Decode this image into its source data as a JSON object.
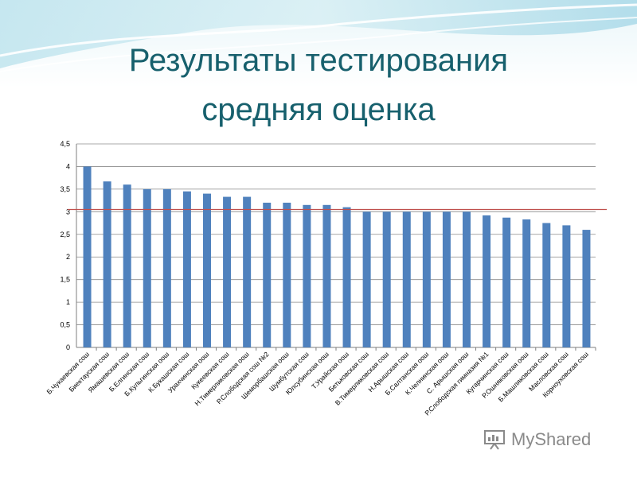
{
  "slide": {
    "title_line_1": "Результаты тестирования",
    "title_line_2": "средняя оценка"
  },
  "watermark": {
    "text": "MyShared"
  },
  "colors": {
    "bar": "#4f81bd",
    "reference_line": "#c0504d",
    "title": "#17606d",
    "grid": "#8c8c8c"
  },
  "chart_data": {
    "type": "bar",
    "title": "",
    "xlabel": "",
    "ylabel": "",
    "ylim": [
      0,
      4.5
    ],
    "ytick_labels": [
      "0",
      "0,5",
      "1",
      "1,5",
      "2",
      "2,5",
      "3",
      "3,5",
      "4",
      "4,5"
    ],
    "grid": true,
    "legend": "none",
    "reference_line": 3.05,
    "categories": [
      "Б.Чукаевская сош",
      "Биектауская сош",
      "Ямашевская сош",
      "Б.Елгинская сош",
      "Б.Кульгинская оош",
      "К.Букашская сош",
      "Урахчинская оош",
      "Кукеевская сош",
      "Н.Тимерликовская оош",
      "Р.Слободская сош №2",
      "Шеморбашская оош",
      "Шумбутская сош",
      "Юлсубинская оош",
      "Т.Урайская оош",
      "Бетьковская сош",
      "В.Тимерликовская сош",
      "Н.Арышская сош",
      "Б.Салтанская оош",
      "К.Челнинская оош",
      "С. Арышская оош",
      "Р.Слободская гимназия №1",
      "Кугарчинская сош",
      "Р.Ошняковская оош",
      "Б.Машляковская сош",
      "Масловская сош",
      "Корноуховская сош"
    ],
    "values": [
      4.0,
      3.67,
      3.6,
      3.5,
      3.5,
      3.45,
      3.4,
      3.33,
      3.33,
      3.2,
      3.2,
      3.15,
      3.15,
      3.1,
      3.0,
      3.0,
      3.0,
      3.0,
      3.0,
      3.0,
      2.92,
      2.87,
      2.83,
      2.75,
      2.7,
      2.6
    ]
  }
}
